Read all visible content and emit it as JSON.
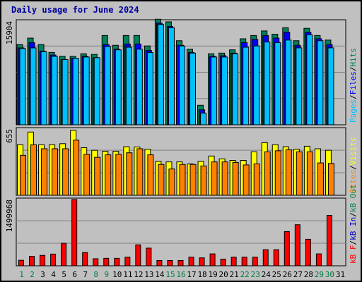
{
  "title": "Daily usage for June 2024",
  "colors": {
    "background": "#c0c0c0",
    "hits": "#00805c",
    "files": "#0000ff",
    "pages": "#00c0ff",
    "visits": "#ffff00",
    "sites": "#ff8000",
    "kb_out": "#008040",
    "kb_in": "#0000c0",
    "kb_f": "#ff0000",
    "weekend_label": "#008040",
    "weekday_label": "#000000"
  },
  "chart_data": [
    {
      "type": "bar",
      "panel": "hits-files-pages",
      "ylabel_max": "15904",
      "ylim": [
        0,
        15904
      ],
      "legend": [
        "Pages",
        "/",
        "Files",
        "/",
        "Hits"
      ],
      "categories": [
        "1",
        "2",
        "3",
        "4",
        "5",
        "6",
        "7",
        "8",
        "9",
        "10",
        "11",
        "12",
        "13",
        "14",
        "15",
        "16",
        "17",
        "18",
        "19",
        "20",
        "21",
        "22",
        "23",
        "24",
        "25",
        "26",
        "27",
        "28",
        "29",
        "30",
        "31"
      ],
      "series": [
        {
          "name": "Hits",
          "values": [
            12300,
            13300,
            12300,
            11100,
            10500,
            10500,
            10900,
            10800,
            13700,
            12200,
            13700,
            13700,
            12100,
            16200,
            15800,
            12900,
            11600,
            3000,
            10900,
            11000,
            11500,
            13200,
            13700,
            14400,
            13900,
            14900,
            12900,
            14800,
            13700,
            13000,
            null
          ]
        },
        {
          "name": "Files",
          "values": [
            11800,
            12600,
            11300,
            10700,
            10000,
            10200,
            10500,
            10300,
            12300,
            11600,
            12400,
            12400,
            11400,
            15600,
            15100,
            12200,
            11100,
            2300,
            10500,
            10600,
            11000,
            12600,
            13100,
            13700,
            13300,
            14200,
            12200,
            14200,
            13200,
            12300,
            null
          ]
        },
        {
          "name": "Pages",
          "values": [
            11700,
            11800,
            11200,
            10500,
            10000,
            10200,
            10400,
            10300,
            12000,
            11500,
            11900,
            11600,
            11100,
            15400,
            14900,
            12100,
            11000,
            1800,
            10400,
            10400,
            10900,
            11900,
            12100,
            12700,
            12600,
            13000,
            11800,
            13800,
            12900,
            11800,
            null
          ]
        }
      ]
    },
    {
      "type": "bar",
      "panel": "visits-sites",
      "ylabel_max": "655",
      "ylim": [
        0,
        655
      ],
      "legend": [
        "Sites",
        "/",
        "Visits"
      ],
      "categories": [
        "1",
        "2",
        "3",
        "4",
        "5",
        "6",
        "7",
        "8",
        "9",
        "10",
        "11",
        "12",
        "13",
        "14",
        "15",
        "16",
        "17",
        "18",
        "19",
        "20",
        "21",
        "22",
        "23",
        "24",
        "25",
        "26",
        "27",
        "28",
        "29",
        "30",
        "31"
      ],
      "series": [
        {
          "name": "Visits",
          "values": [
            500,
            625,
            500,
            500,
            510,
            642,
            470,
            445,
            435,
            435,
            480,
            478,
            455,
            335,
            330,
            330,
            310,
            335,
            388,
            360,
            345,
            345,
            430,
            520,
            500,
            480,
            455,
            485,
            460,
            445,
            null
          ]
        },
        {
          "name": "Sites",
          "values": [
            395,
            500,
            460,
            460,
            460,
            545,
            405,
            375,
            400,
            405,
            420,
            460,
            400,
            305,
            260,
            305,
            305,
            290,
            330,
            330,
            325,
            300,
            310,
            430,
            440,
            450,
            430,
            430,
            320,
            315,
            null
          ]
        }
      ]
    },
    {
      "type": "bar",
      "panel": "kb",
      "ylabel_max": "1499968",
      "ylim": [
        0,
        1499968
      ],
      "legend": [
        "kB F",
        "/",
        "kB In",
        "/",
        "kB Out"
      ],
      "categories": [
        "1",
        "2",
        "3",
        "4",
        "5",
        "6",
        "7",
        "8",
        "9",
        "10",
        "11",
        "12",
        "13",
        "14",
        "15",
        "16",
        "17",
        "18",
        "19",
        "20",
        "21",
        "22",
        "23",
        "24",
        "25",
        "26",
        "27",
        "28",
        "29",
        "30",
        "31"
      ],
      "series": [
        {
          "name": "kB F",
          "values": [
            125000,
            215000,
            235000,
            265000,
            510000,
            1499968,
            300000,
            160000,
            170000,
            170000,
            195000,
            475000,
            400000,
            120000,
            120000,
            120000,
            195000,
            180000,
            270000,
            150000,
            195000,
            195000,
            195000,
            365000,
            365000,
            775000,
            930000,
            600000,
            270000,
            1140000,
            null
          ]
        }
      ]
    }
  ],
  "x_labels": [
    "1",
    "2",
    "3",
    "4",
    "5",
    "6",
    "7",
    "8",
    "9",
    "10",
    "11",
    "12",
    "13",
    "14",
    "15",
    "16",
    "17",
    "18",
    "19",
    "20",
    "21",
    "22",
    "23",
    "24",
    "25",
    "26",
    "27",
    "28",
    "29",
    "30",
    "31"
  ],
  "weekend_days": [
    1,
    2,
    8,
    9,
    15,
    16,
    22,
    23,
    29,
    30
  ]
}
